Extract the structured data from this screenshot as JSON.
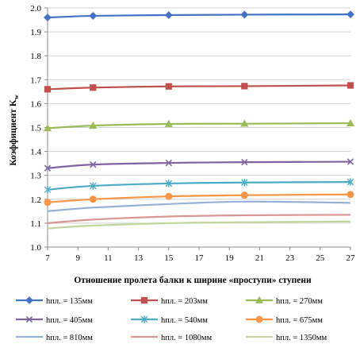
{
  "chart_data": {
    "type": "line",
    "title": "",
    "xlabel": "Отношение пролета балки к ширине «проступи» ступени",
    "ylabel": "Коэффициент K",
    "ylabel_sub": "w",
    "xlim": [
      7,
      27
    ],
    "ylim": [
      1.0,
      2.0
    ],
    "x_ticks": [
      7,
      9,
      11,
      13,
      15,
      17,
      19,
      21,
      23,
      25,
      27
    ],
    "y_ticks": [
      "1.0",
      "1.1",
      "1.2",
      "1.3",
      "1.4",
      "1.5",
      "1.6",
      "1.7",
      "1.8",
      "1.9",
      "2.0"
    ],
    "y_tick_values": [
      1.0,
      1.1,
      1.2,
      1.3,
      1.4,
      1.5,
      1.6,
      1.7,
      1.8,
      1.9,
      2.0
    ],
    "grid": true,
    "legend_position": "bottom",
    "x": [
      7,
      10,
      15,
      20,
      27
    ],
    "series": [
      {
        "name": "hпл. = 135мм",
        "color": "#4472c4",
        "marker": "diamond",
        "values": [
          1.96,
          1.967,
          1.97,
          1.972,
          1.973
        ]
      },
      {
        "name": "hпл. = 203мм",
        "color": "#c0504d",
        "marker": "square",
        "values": [
          1.66,
          1.667,
          1.672,
          1.673,
          1.676
        ]
      },
      {
        "name": "hпл. = 270мм",
        "color": "#9bbb59",
        "marker": "triangle",
        "values": [
          1.497,
          1.508,
          1.515,
          1.516,
          1.518
        ]
      },
      {
        "name": "hпл. = 405мм",
        "color": "#8064a2",
        "marker": "x",
        "values": [
          1.33,
          1.345,
          1.352,
          1.355,
          1.357
        ]
      },
      {
        "name": "hпл. = 540мм",
        "color": "#4bacc6",
        "marker": "star",
        "values": [
          1.24,
          1.256,
          1.266,
          1.27,
          1.272
        ]
      },
      {
        "name": "hпл. = 675мм",
        "color": "#f79646",
        "marker": "circle",
        "values": [
          1.187,
          1.2,
          1.212,
          1.217,
          1.22
        ]
      },
      {
        "name": "hпл. = 810мм",
        "color": "#95b3d7",
        "marker": "none",
        "values": [
          1.15,
          1.165,
          1.18,
          1.19,
          1.185
        ]
      },
      {
        "name": "hпл. = 1080мм",
        "color": "#d99694",
        "marker": "none",
        "values": [
          1.1,
          1.115,
          1.128,
          1.133,
          1.135
        ]
      },
      {
        "name": "hпл. = 1350мм",
        "color": "#c3d69b",
        "marker": "none",
        "values": [
          1.078,
          1.09,
          1.1,
          1.104,
          1.107
        ]
      }
    ]
  }
}
